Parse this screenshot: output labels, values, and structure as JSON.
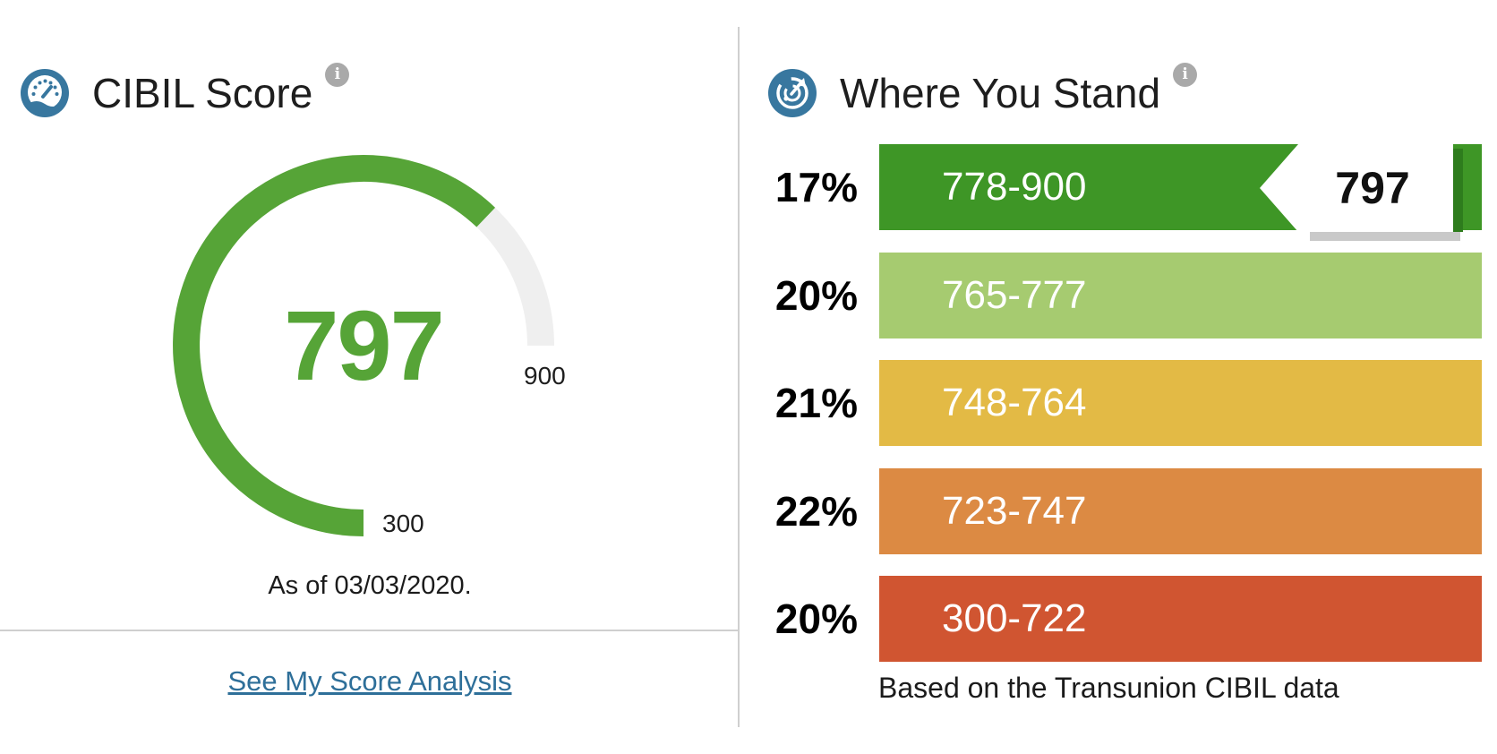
{
  "left_panel": {
    "title": "CIBIL Score",
    "info_glyph": "i",
    "gauge": {
      "score": 797,
      "score_display": "797",
      "min": 300,
      "max": 900,
      "min_label": "300",
      "max_label": "900",
      "start_angle_deg": -90,
      "sweep_deg": 270,
      "arc_color": "#56a437",
      "track_color": "#efefef"
    },
    "as_of": "As of 03/03/2020.",
    "link_label": "See My Score Analysis",
    "link_color": "#2e6f99"
  },
  "right_panel": {
    "title": "Where You Stand",
    "info_glyph": "i",
    "note": "Based on the Transunion CIBIL data"
  },
  "icon_colors": {
    "header_icon_blue": "#38779f",
    "info_badge_gray": "#a9a9a9"
  },
  "chart_data": {
    "type": "bar",
    "orientation": "horizontal",
    "title": "Where You Stand",
    "categories": [
      "778-900",
      "765-777",
      "748-764",
      "723-747",
      "300-722"
    ],
    "values": [
      17,
      20,
      21,
      22,
      20
    ],
    "unit": "%",
    "legend": "none",
    "grid": false,
    "bars": [
      {
        "percent": "17%",
        "range": "778-900",
        "color": "#3e9626"
      },
      {
        "percent": "20%",
        "range": "765-777",
        "color": "#a6cb70"
      },
      {
        "percent": "21%",
        "range": "748-764",
        "color": "#e3ba45"
      },
      {
        "percent": "22%",
        "range": "723-747",
        "color": "#dc8a43"
      },
      {
        "percent": "20%",
        "range": "300-722",
        "color": "#d05531"
      }
    ],
    "marker": {
      "value": "797",
      "row_index": 0
    }
  }
}
